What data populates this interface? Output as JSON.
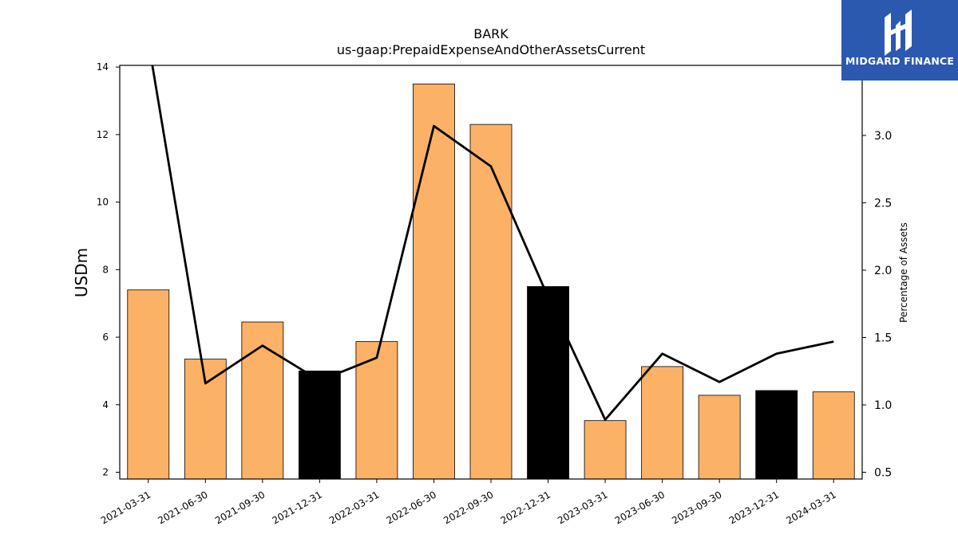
{
  "chart_data": {
    "type": "bar",
    "title": "BARK",
    "subtitle": "us-gaap:PrepaidExpenseAndOtherAssetsCurrent",
    "ylabel": "USDm",
    "y2label": "Percentage of Assets",
    "ylim": [
      1.8,
      14.05
    ],
    "y2lim": [
      0.45,
      3.52
    ],
    "yticks": [
      2,
      4,
      6,
      8,
      10,
      12,
      14
    ],
    "y2ticks": [
      0.5,
      1.0,
      1.5,
      2.0,
      2.5,
      3.0
    ],
    "categories": [
      "2021-03-31",
      "2021-06-30",
      "2021-09-30",
      "2021-12-31",
      "2022-03-31",
      "2022-06-30",
      "2022-09-30",
      "2022-12-31",
      "2023-03-31",
      "2023-06-30",
      "2023-09-30",
      "2023-12-31",
      "2024-03-31"
    ],
    "series": [
      {
        "type": "bar",
        "axis": "left",
        "values": [
          7.4,
          5.35,
          6.45,
          5.0,
          5.87,
          13.5,
          12.3,
          7.5,
          3.53,
          5.13,
          4.28,
          4.42,
          4.38
        ],
        "colors": [
          "#fbb266",
          "#fbb266",
          "#fbb266",
          "#000000",
          "#fbb266",
          "#fbb266",
          "#fbb266",
          "#000000",
          "#fbb266",
          "#fbb266",
          "#fbb266",
          "#000000",
          "#fbb266"
        ]
      },
      {
        "type": "line",
        "axis": "right",
        "color": "#000000",
        "values": [
          3.7,
          1.16,
          1.44,
          1.18,
          1.35,
          3.07,
          2.77,
          1.8,
          0.89,
          1.38,
          1.17,
          1.38,
          1.47
        ]
      }
    ],
    "grid": false
  },
  "logo": {
    "text": "MIDGARD FINANCE",
    "background": "#2b59b0"
  }
}
